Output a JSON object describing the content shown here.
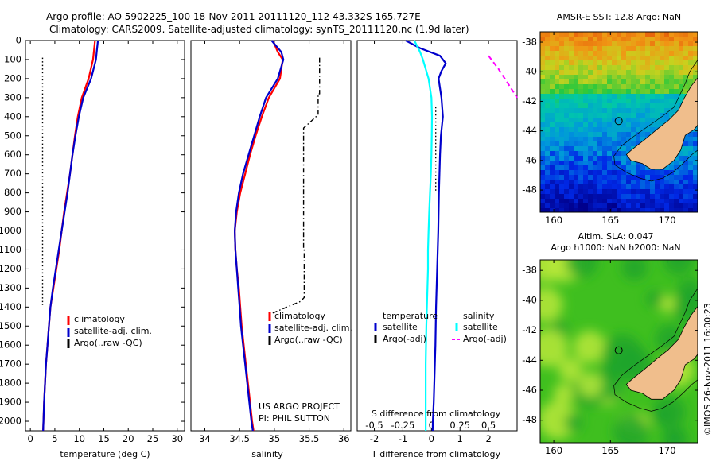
{
  "header": {
    "line1": "Argo profile: AO 5902225_100 18-Nov-2011 20111120_112 43.332S 165.727E",
    "line2": "Climatology: CARS2009. Satellite-adjusted climatology: synTS_20111120.nc (1.9d later)"
  },
  "colors": {
    "climatology": "#ff0000",
    "satellite": "#0000cc",
    "argo": "#000000",
    "salinity_satellite": "#00ffff",
    "salinity_argo": "#ff00ff",
    "land": "#f0be8c"
  },
  "chart_data": [
    {
      "type": "line",
      "id": "temperature",
      "xlabel": "temperature (deg C)",
      "xlim": [
        -1,
        31.5
      ],
      "xticks": [
        0,
        5,
        10,
        15,
        20,
        25,
        30
      ],
      "ylim": [
        0,
        2050
      ],
      "yticks": [
        0,
        100,
        200,
        300,
        400,
        500,
        600,
        700,
        800,
        900,
        1000,
        1100,
        1200,
        1300,
        1400,
        1500,
        1600,
        1700,
        1800,
        1900,
        2000
      ],
      "y_reversed": true,
      "legend": [
        "climatology",
        "satellite-adj. clim.",
        "Argo(..raw -QC)"
      ],
      "series": [
        {
          "name": "climatology",
          "color": "red",
          "x": [
            13.2,
            13.0,
            12.8,
            11.9,
            10.5,
            9.7,
            9.1,
            8.6,
            8.1,
            7.5,
            6.9,
            6.4,
            5.9,
            5.3,
            4.7,
            4.1,
            3.8,
            3.5,
            3.2,
            3.0,
            2.8,
            2.6
          ],
          "y": [
            0,
            50,
            100,
            200,
            300,
            400,
            500,
            600,
            700,
            800,
            900,
            1000,
            1100,
            1200,
            1300,
            1400,
            1500,
            1600,
            1700,
            1800,
            1900,
            2050
          ]
        },
        {
          "name": "satellite-adj. clim.",
          "color": "blue",
          "x": [
            13.8,
            13.6,
            13.4,
            12.4,
            10.8,
            9.9,
            9.2,
            8.6,
            8.1,
            7.6,
            7.0,
            6.4,
            5.8,
            5.2,
            4.6,
            4.1,
            3.8,
            3.5,
            3.2,
            3.0,
            2.8,
            2.6
          ],
          "y": [
            0,
            50,
            100,
            200,
            300,
            400,
            500,
            600,
            700,
            800,
            900,
            1000,
            1100,
            1200,
            1300,
            1400,
            1500,
            1600,
            1700,
            1800,
            1900,
            2050
          ]
        },
        {
          "name": "Argo(..raw -QC)",
          "color": "black",
          "x": [
            2.5,
            2.5
          ],
          "y": [
            90,
            1390
          ],
          "dash": "dot"
        }
      ]
    },
    {
      "type": "line",
      "id": "salinity",
      "xlabel": "salinity",
      "xlim": [
        33.8,
        36.1
      ],
      "xticks": [
        34,
        34.5,
        35,
        35.5,
        36
      ],
      "ylim": [
        0,
        2050
      ],
      "y_reversed": true,
      "legend": [
        "climatology",
        "satellite-adj. clim.",
        "Argo(..raw -QC)"
      ],
      "annotation": [
        "US ARGO PROJECT",
        "PI: PHIL SUTTON"
      ],
      "series": [
        {
          "name": "climatology",
          "color": "red",
          "x": [
            34.98,
            35.05,
            35.12,
            35.08,
            34.92,
            34.82,
            34.73,
            34.65,
            34.58,
            34.51,
            34.46,
            34.43,
            34.44,
            34.46,
            34.49,
            34.51,
            34.53,
            34.56,
            34.59,
            34.62,
            34.65,
            34.68,
            34.7
          ],
          "y": [
            0,
            60,
            100,
            200,
            300,
            400,
            500,
            600,
            700,
            800,
            900,
            1000,
            1100,
            1200,
            1300,
            1400,
            1500,
            1600,
            1700,
            1800,
            1900,
            2000,
            2050
          ]
        },
        {
          "name": "satellite-adj. clim.",
          "color": "blue",
          "x": [
            34.96,
            35.1,
            35.13,
            35.05,
            34.88,
            34.79,
            34.71,
            34.63,
            34.55,
            34.49,
            34.45,
            34.43,
            34.44,
            34.46,
            34.48,
            34.5,
            34.52,
            34.55,
            34.58,
            34.61,
            34.64,
            34.67,
            34.69
          ],
          "y": [
            0,
            60,
            100,
            200,
            300,
            400,
            500,
            600,
            700,
            800,
            900,
            1000,
            1100,
            1200,
            1300,
            1400,
            1500,
            1600,
            1700,
            1800,
            1900,
            2000,
            2050
          ]
        },
        {
          "name": "Argo(..raw -QC)",
          "color": "black",
          "x": [
            35.65,
            35.65,
            35.63,
            35.63,
            35.42,
            35.42,
            35.43,
            35.43,
            35.38,
            34.92
          ],
          "y": [
            90,
            280,
            280,
            390,
            460,
            1100,
            1100,
            1350,
            1370,
            1440
          ],
          "dash": "dashdot"
        }
      ]
    },
    {
      "type": "line",
      "id": "difference",
      "xlabel": "T difference from climatology",
      "xlabel_top": "S difference from climatology",
      "xlim": [
        -2.6,
        3.0
      ],
      "xticks": [
        -2,
        -1,
        0,
        1,
        2
      ],
      "s_ticks": [
        "-0.5",
        "-0.25",
        "0",
        "0.25",
        "0.5"
      ],
      "s_tick_T_positions": [
        -2,
        -1,
        0,
        1,
        2
      ],
      "ylim": [
        0,
        2050
      ],
      "y_reversed": true,
      "legend_titles": [
        "temperature",
        "salinity"
      ],
      "legend": [
        "satellite",
        "Argo(-adj)",
        "satellite",
        "Argo(-adj)"
      ],
      "series": [
        {
          "name": "temperature satellite",
          "color": "blue",
          "x": [
            -0.9,
            -0.4,
            0.3,
            0.5,
            0.35,
            0.25,
            0.35,
            0.4,
            0.33,
            0.3,
            0.28,
            0.26,
            0.25,
            0.24,
            0.22,
            0.2,
            0.18,
            0.16,
            0.15,
            0.14,
            0.12,
            0.1,
            0.08,
            0.05,
            0.04
          ],
          "y": [
            0,
            40,
            80,
            120,
            160,
            200,
            300,
            400,
            500,
            600,
            700,
            800,
            900,
            1000,
            1100,
            1200,
            1300,
            1400,
            1500,
            1600,
            1700,
            1800,
            1900,
            2000,
            2050
          ]
        },
        {
          "name": "salinity satellite",
          "color": "cyan",
          "x": [
            -0.6,
            -0.4,
            -0.3,
            -0.1,
            0.0,
            0.02,
            0.01,
            0.0,
            -0.02,
            -0.05,
            -0.08,
            -0.1,
            -0.12,
            -0.12,
            -0.14,
            -0.16,
            -0.18,
            -0.19,
            -0.2,
            -0.2,
            -0.2
          ],
          "y": [
            0,
            60,
            100,
            200,
            300,
            400,
            500,
            600,
            700,
            800,
            900,
            1000,
            1100,
            1200,
            1300,
            1400,
            1500,
            1600,
            1700,
            1900,
            2050
          ]
        },
        {
          "name": "temperature Argo(-adj)",
          "color": "black",
          "x": [
            0.15,
            0.15
          ],
          "y": [
            350,
            800
          ],
          "dash": "dot"
        },
        {
          "name": "salinity Argo(-adj)",
          "color": "magenta",
          "x": [
            2.0,
            2.35,
            2.7,
            3.0
          ],
          "y": [
            80,
            150,
            230,
            300
          ],
          "dash": "dash"
        }
      ]
    },
    {
      "type": "heatmap",
      "id": "sst-map",
      "title": "AMSR-E SST: 12.8  Argo: NaN",
      "xlim": [
        158.8,
        172.7
      ],
      "ylim": [
        -49.5,
        -37.3
      ],
      "xticks": [
        160,
        165,
        170
      ],
      "yticks": [
        -38,
        -40,
        -42,
        -44,
        -46,
        -48
      ],
      "marker": {
        "lon": 165.727,
        "lat": -43.332
      }
    },
    {
      "type": "heatmap",
      "id": "sla-map",
      "title": "Altim. SLA: 0.047",
      "subtitle": "Argo h1000: NaN h2000: NaN",
      "xlim": [
        158.8,
        172.7
      ],
      "ylim": [
        -49.5,
        -37.3
      ],
      "xticks": [
        160,
        165,
        170
      ],
      "yticks": [
        -38,
        -40,
        -42,
        -44,
        -46,
        -48
      ],
      "marker": {
        "lon": 165.727,
        "lat": -43.332
      }
    }
  ],
  "credit": "©IMOS 26-Nov-2011 16:00:23"
}
